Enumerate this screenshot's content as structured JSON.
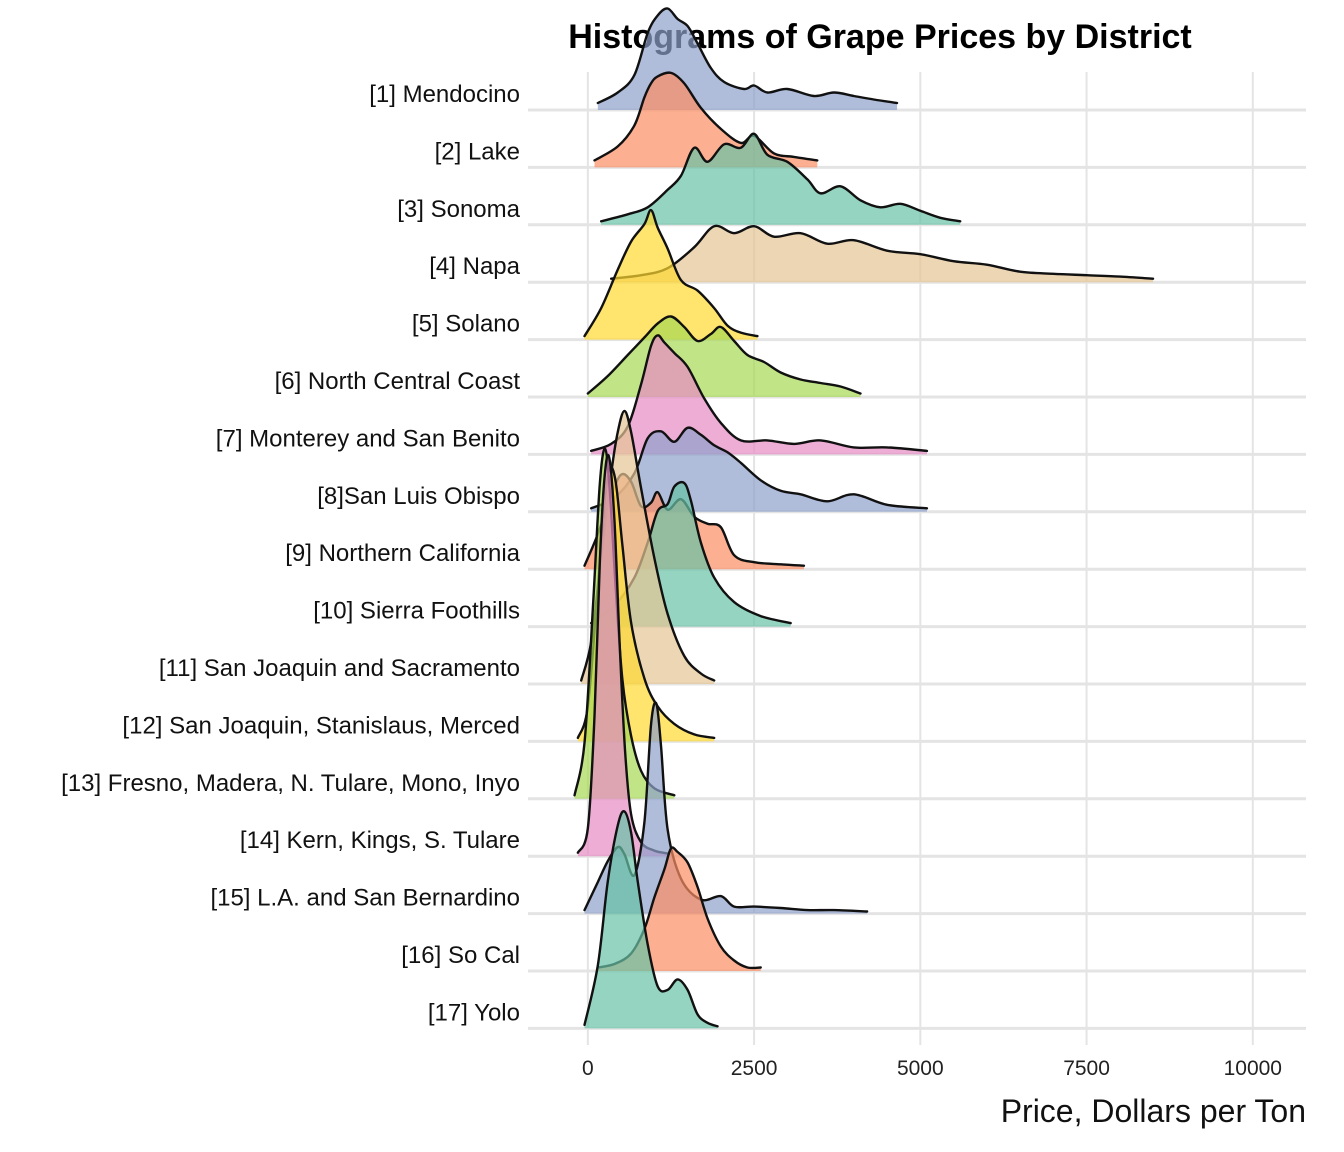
{
  "chart_data": {
    "type": "ridgeline",
    "title": "Histograms of Grape Prices by District",
    "xlabel": "Price, Dollars per Ton",
    "ylabel": "",
    "xlim": [
      -900,
      10800
    ],
    "xticks": [
      0,
      2500,
      5000,
      7500,
      10000
    ],
    "grid": "vertical",
    "legend": "none",
    "palette": [
      "#8da0cb",
      "#fc8d62",
      "#66c2a5",
      "#e5c494",
      "#ffd92f",
      "#a6d854",
      "#e78ac3"
    ],
    "categories": [
      "[1] Mendocino",
      "[2] Lake",
      "[3] Sonoma",
      "[4] Napa",
      "[5] Solano",
      "[6] North Central Coast",
      "[7] Monterey and San Benito",
      "[8]San Luis Obispo",
      "[9] Northern California",
      "[10] Sierra Foothills",
      "[11] San Joaquin and Sacramento",
      "[12] San Joaquin, Stanislaus, Merced",
      "[13] Fresno, Madera, N. Tulare, Mono, Inyo",
      "[14] Kern, Kings, S. Tulare",
      "[15] L.A. and San Bernardino",
      "[16] So Cal",
      "[17] Yolo"
    ],
    "series": [
      {
        "x": [
          150,
          450,
          700,
          900,
          1050,
          1200,
          1350,
          1500,
          1650,
          1850,
          2050,
          2350,
          2500,
          2700,
          3000,
          3400,
          3700,
          4000,
          4300,
          4650
        ],
        "y": [
          0.1,
          0.25,
          0.5,
          1.1,
          1.35,
          1.45,
          1.3,
          1.2,
          0.95,
          0.6,
          0.4,
          0.3,
          0.35,
          0.25,
          0.3,
          0.2,
          0.25,
          0.2,
          0.15,
          0.1
        ]
      },
      {
        "x": [
          100,
          450,
          700,
          850,
          950,
          1050,
          1250,
          1450,
          1700,
          2000,
          2300,
          2500,
          2800,
          3100,
          3450
        ],
        "y": [
          0.1,
          0.3,
          0.6,
          1.0,
          1.2,
          1.3,
          1.35,
          1.2,
          0.85,
          0.55,
          0.35,
          0.45,
          0.2,
          0.15,
          0.1
        ]
      },
      {
        "x": [
          200,
          600,
          900,
          1200,
          1400,
          1600,
          1800,
          2050,
          2300,
          2500,
          2700,
          3000,
          3300,
          3500,
          3800,
          4100,
          4400,
          4700,
          5000,
          5300,
          5600
        ],
        "y": [
          0.05,
          0.15,
          0.25,
          0.5,
          0.7,
          1.1,
          0.9,
          1.15,
          1.1,
          1.3,
          1.0,
          0.9,
          0.65,
          0.45,
          0.55,
          0.35,
          0.25,
          0.3,
          0.2,
          0.1,
          0.05
        ]
      },
      {
        "x": [
          350,
          800,
          1200,
          1600,
          1900,
          2200,
          2500,
          2800,
          3200,
          3600,
          4000,
          4500,
          5000,
          5500,
          6000,
          6500,
          7000,
          7500,
          8000,
          8500
        ],
        "y": [
          0.05,
          0.1,
          0.2,
          0.5,
          0.8,
          0.7,
          0.8,
          0.65,
          0.7,
          0.55,
          0.6,
          0.45,
          0.4,
          0.3,
          0.25,
          0.15,
          0.12,
          0.1,
          0.08,
          0.05
        ]
      },
      {
        "x": [
          -50,
          200,
          450,
          650,
          850,
          950,
          1050,
          1200,
          1400,
          1650,
          1900,
          2100,
          2300,
          2550
        ],
        "y": [
          0.05,
          0.45,
          1.0,
          1.4,
          1.65,
          1.85,
          1.6,
          1.3,
          0.85,
          0.7,
          0.45,
          0.2,
          0.1,
          0.05
        ]
      },
      {
        "x": [
          0,
          300,
          600,
          850,
          1050,
          1250,
          1450,
          1650,
          1850,
          2000,
          2200,
          2400,
          2650,
          2900,
          3200,
          3500,
          3800,
          4100
        ],
        "y": [
          0.05,
          0.3,
          0.6,
          0.85,
          1.05,
          1.15,
          1.0,
          0.8,
          0.9,
          1.0,
          0.8,
          0.6,
          0.5,
          0.35,
          0.25,
          0.2,
          0.15,
          0.05
        ]
      },
      {
        "x": [
          50,
          350,
          600,
          800,
          950,
          1050,
          1150,
          1300,
          1500,
          1750,
          2000,
          2300,
          2700,
          3100,
          3500,
          4000,
          4500,
          5100
        ],
        "y": [
          0.05,
          0.15,
          0.4,
          1.0,
          1.55,
          1.7,
          1.6,
          1.45,
          1.25,
          0.8,
          0.45,
          0.2,
          0.2,
          0.15,
          0.2,
          0.1,
          0.1,
          0.05
        ]
      },
      {
        "x": [
          50,
          400,
          700,
          900,
          1100,
          1300,
          1500,
          1700,
          1900,
          2100,
          2300,
          2600,
          2900,
          3200,
          3600,
          4000,
          4500,
          5100
        ],
        "y": [
          0.05,
          0.2,
          0.55,
          1.05,
          1.15,
          1.0,
          1.2,
          1.1,
          0.95,
          0.85,
          0.7,
          0.45,
          0.3,
          0.25,
          0.15,
          0.25,
          0.1,
          0.05
        ]
      },
      {
        "x": [
          -50,
          150,
          350,
          500,
          650,
          800,
          950,
          1050,
          1200,
          1400,
          1600,
          1800,
          2000,
          2200,
          2500,
          2900,
          3250
        ],
        "y": [
          0.05,
          0.5,
          1.05,
          1.35,
          1.25,
          0.9,
          0.95,
          1.1,
          0.85,
          1.0,
          0.75,
          0.65,
          0.6,
          0.2,
          0.1,
          0.07,
          0.05
        ]
      },
      {
        "x": [
          50,
          400,
          700,
          900,
          1050,
          1200,
          1300,
          1450,
          1550,
          1700,
          1900,
          2200,
          2600,
          3050
        ],
        "y": [
          0.05,
          0.3,
          0.7,
          1.2,
          1.65,
          1.75,
          2.0,
          2.05,
          1.8,
          1.2,
          0.7,
          0.35,
          0.15,
          0.05
        ]
      },
      {
        "x": [
          -100,
          50,
          200,
          350,
          450,
          550,
          650,
          800,
          1000,
          1200,
          1450,
          1700,
          1900
        ],
        "y": [
          0.05,
          0.6,
          1.8,
          3.0,
          3.6,
          3.9,
          3.6,
          2.8,
          1.8,
          1.0,
          0.4,
          0.15,
          0.05
        ]
      },
      {
        "x": [
          -150,
          0,
          150,
          250,
          330,
          420,
          520,
          650,
          850,
          1050,
          1300,
          1600,
          1900
        ],
        "y": [
          0.05,
          0.5,
          2.2,
          3.4,
          3.9,
          3.7,
          2.8,
          1.7,
          0.9,
          0.5,
          0.25,
          0.1,
          0.05
        ]
      },
      {
        "x": [
          -200,
          -50,
          80,
          180,
          260,
          330,
          420,
          520,
          650,
          800,
          1000,
          1300
        ],
        "y": [
          0.05,
          0.8,
          2.8,
          4.5,
          5.0,
          4.4,
          3.0,
          1.7,
          0.9,
          0.4,
          0.15,
          0.05
        ]
      },
      {
        "x": [
          -150,
          0,
          100,
          180,
          250,
          320,
          400,
          480,
          560,
          650,
          800,
          1000,
          1200
        ],
        "y": [
          0.05,
          0.4,
          2.0,
          4.2,
          5.4,
          5.7,
          4.8,
          3.0,
          1.5,
          0.6,
          0.2,
          0.08,
          0.04
        ]
      },
      {
        "x": [
          -50,
          150,
          300,
          450,
          550,
          700,
          850,
          950,
          1030,
          1100,
          1200,
          1400,
          1700,
          2000,
          2200,
          2500,
          2900,
          3300,
          3700,
          4200
        ],
        "y": [
          0.05,
          0.45,
          0.75,
          0.95,
          0.85,
          0.55,
          1.3,
          2.7,
          3.0,
          2.4,
          1.2,
          0.5,
          0.2,
          0.25,
          0.1,
          0.1,
          0.08,
          0.05,
          0.05,
          0.03
        ]
      },
      {
        "x": [
          150,
          400,
          650,
          850,
          1000,
          1150,
          1250,
          1350,
          1500,
          1650,
          1800,
          2000,
          2200,
          2400,
          2600
        ],
        "y": [
          0.05,
          0.1,
          0.25,
          0.6,
          1.05,
          1.45,
          1.75,
          1.7,
          1.55,
          1.2,
          0.75,
          0.35,
          0.15,
          0.05,
          0.05
        ]
      },
      {
        "x": [
          -50,
          150,
          300,
          450,
          550,
          650,
          750,
          900,
          1050,
          1200,
          1350,
          1500,
          1650,
          1800,
          1950
        ],
        "y": [
          0.05,
          0.9,
          2.1,
          2.9,
          3.1,
          2.8,
          2.1,
          1.2,
          0.6,
          0.55,
          0.7,
          0.55,
          0.2,
          0.08,
          0.03
        ]
      }
    ]
  }
}
